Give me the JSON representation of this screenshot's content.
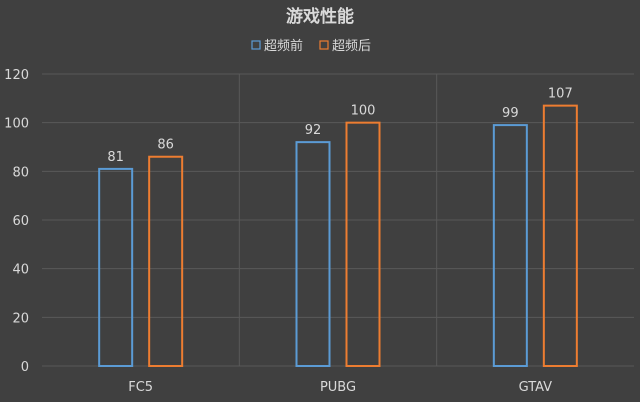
{
  "chart_data": {
    "type": "bar",
    "title": "游戏性能",
    "categories": [
      "FC5",
      "PUBG",
      "GTAV"
    ],
    "series": [
      {
        "name": "超频前",
        "values": [
          81,
          92,
          99
        ],
        "color": "#5B9BD5"
      },
      {
        "name": "超频后",
        "values": [
          86,
          100,
          107
        ],
        "color": "#ED7D31"
      }
    ],
    "ylim": [
      0,
      120
    ],
    "yticks": [
      0,
      20,
      40,
      60,
      80,
      100,
      120
    ],
    "grid": true,
    "legend_position": "top",
    "bar_style": "outline",
    "data_labels": true
  },
  "colors": {
    "background": "#404040",
    "text": "#D9D9D9",
    "gridline": "#595959"
  }
}
